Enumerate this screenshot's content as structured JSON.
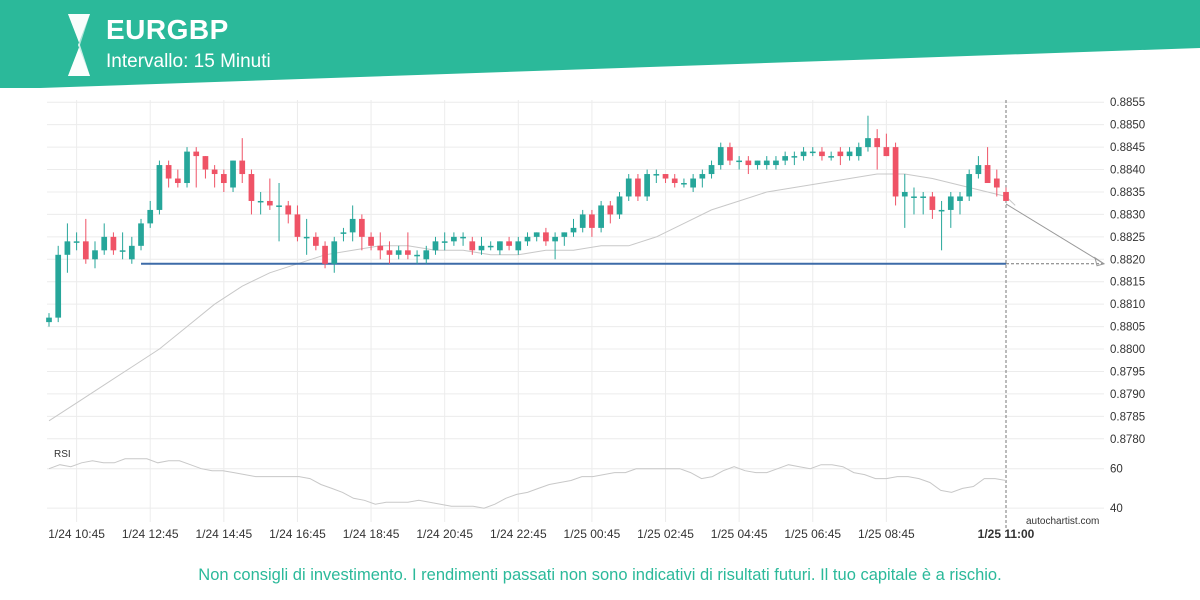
{
  "header": {
    "symbol": "EURGBP",
    "interval": "Intervallo: 15 Minuti",
    "brand_color": "#2bb99a",
    "logo_icon": "autochartist-logo-icon"
  },
  "footer": {
    "disclaimer": "Non consigli di investimento. I rendimenti passati non sono indicativi di risultati futuri. Il tuo capitale è a rischio."
  },
  "chart_data": [
    {
      "type": "candlestick",
      "title": "",
      "colors": {
        "up": "#26a69a",
        "down": "#ef5366",
        "moving_average": "#c8c8c8",
        "support_line": "#3d6ba8",
        "projection": "#999999"
      },
      "x_tick_labels": [
        "1/24 10:45",
        "1/24 12:45",
        "1/24 14:45",
        "1/24 16:45",
        "1/24 18:45",
        "1/24 20:45",
        "1/24 22:45",
        "1/25 00:45",
        "1/25 02:45",
        "1/25 04:45",
        "1/25 06:45",
        "1/25 08:45",
        "1/25 11:00"
      ],
      "y_ticks": [
        "0.8855",
        "0.8850",
        "0.8845",
        "0.8840",
        "0.8835",
        "0.8830",
        "0.8825",
        "0.8820",
        "0.8815",
        "0.8810",
        "0.8805",
        "0.8800",
        "0.8795",
        "0.8790",
        "0.8785",
        "0.8780"
      ],
      "ylim": [
        0.87775,
        0.88555
      ],
      "grid": true,
      "candles": [
        {
          "o": 0.8806,
          "h": 0.8808,
          "l": 0.8805,
          "c": 0.8807
        },
        {
          "o": 0.8807,
          "h": 0.8823,
          "l": 0.8806,
          "c": 0.8821
        },
        {
          "o": 0.8821,
          "h": 0.8828,
          "l": 0.8817,
          "c": 0.8824
        },
        {
          "o": 0.8824,
          "h": 0.8826,
          "l": 0.8822,
          "c": 0.8824
        },
        {
          "o": 0.8824,
          "h": 0.8829,
          "l": 0.8819,
          "c": 0.882
        },
        {
          "o": 0.882,
          "h": 0.8824,
          "l": 0.8818,
          "c": 0.8822
        },
        {
          "o": 0.8822,
          "h": 0.8828,
          "l": 0.8821,
          "c": 0.8825
        },
        {
          "o": 0.8825,
          "h": 0.8826,
          "l": 0.8821,
          "c": 0.8822
        },
        {
          "o": 0.8822,
          "h": 0.8826,
          "l": 0.882,
          "c": 0.8822
        },
        {
          "o": 0.882,
          "h": 0.8825,
          "l": 0.8819,
          "c": 0.8823
        },
        {
          "o": 0.8823,
          "h": 0.8829,
          "l": 0.8822,
          "c": 0.8828
        },
        {
          "o": 0.8828,
          "h": 0.8833,
          "l": 0.8827,
          "c": 0.8831
        },
        {
          "o": 0.8831,
          "h": 0.8842,
          "l": 0.883,
          "c": 0.8841
        },
        {
          "o": 0.8841,
          "h": 0.8842,
          "l": 0.8836,
          "c": 0.8838
        },
        {
          "o": 0.8838,
          "h": 0.884,
          "l": 0.8836,
          "c": 0.8837
        },
        {
          "o": 0.8837,
          "h": 0.8845,
          "l": 0.8836,
          "c": 0.8844
        },
        {
          "o": 0.8844,
          "h": 0.8845,
          "l": 0.8836,
          "c": 0.8843
        },
        {
          "o": 0.8843,
          "h": 0.8843,
          "l": 0.8838,
          "c": 0.884
        },
        {
          "o": 0.884,
          "h": 0.8841,
          "l": 0.8836,
          "c": 0.8839
        },
        {
          "o": 0.8839,
          "h": 0.884,
          "l": 0.8835,
          "c": 0.8837
        },
        {
          "o": 0.8836,
          "h": 0.8842,
          "l": 0.8835,
          "c": 0.8842
        },
        {
          "o": 0.8842,
          "h": 0.8847,
          "l": 0.8837,
          "c": 0.8839
        },
        {
          "o": 0.8839,
          "h": 0.884,
          "l": 0.883,
          "c": 0.8833
        },
        {
          "o": 0.8833,
          "h": 0.8835,
          "l": 0.883,
          "c": 0.8833
        },
        {
          "o": 0.8833,
          "h": 0.8838,
          "l": 0.8831,
          "c": 0.8832
        },
        {
          "o": 0.8832,
          "h": 0.8837,
          "l": 0.8824,
          "c": 0.8832
        },
        {
          "o": 0.8832,
          "h": 0.8833,
          "l": 0.8828,
          "c": 0.883
        },
        {
          "o": 0.883,
          "h": 0.8832,
          "l": 0.8824,
          "c": 0.8825
        },
        {
          "o": 0.8825,
          "h": 0.8829,
          "l": 0.8821,
          "c": 0.8825
        },
        {
          "o": 0.8825,
          "h": 0.8826,
          "l": 0.8822,
          "c": 0.8823
        },
        {
          "o": 0.8823,
          "h": 0.8824,
          "l": 0.8818,
          "c": 0.8819
        },
        {
          "o": 0.8819,
          "h": 0.8825,
          "l": 0.8817,
          "c": 0.8824
        },
        {
          "o": 0.8826,
          "h": 0.8827,
          "l": 0.8824,
          "c": 0.8826
        },
        {
          "o": 0.8826,
          "h": 0.8832,
          "l": 0.8824,
          "c": 0.8829
        },
        {
          "o": 0.8829,
          "h": 0.883,
          "l": 0.8822,
          "c": 0.8825
        },
        {
          "o": 0.8825,
          "h": 0.8826,
          "l": 0.8822,
          "c": 0.8823
        },
        {
          "o": 0.8823,
          "h": 0.8826,
          "l": 0.882,
          "c": 0.8822
        },
        {
          "o": 0.8822,
          "h": 0.8824,
          "l": 0.8819,
          "c": 0.8821
        },
        {
          "o": 0.8821,
          "h": 0.8823,
          "l": 0.882,
          "c": 0.8822
        },
        {
          "o": 0.8822,
          "h": 0.8826,
          "l": 0.882,
          "c": 0.8821
        },
        {
          "o": 0.8821,
          "h": 0.8822,
          "l": 0.8819,
          "c": 0.8821
        },
        {
          "o": 0.882,
          "h": 0.8823,
          "l": 0.8819,
          "c": 0.8822
        },
        {
          "o": 0.8822,
          "h": 0.8825,
          "l": 0.8821,
          "c": 0.8824
        },
        {
          "o": 0.8824,
          "h": 0.8826,
          "l": 0.8822,
          "c": 0.8824
        },
        {
          "o": 0.8824,
          "h": 0.8826,
          "l": 0.8823,
          "c": 0.8825
        },
        {
          "o": 0.8825,
          "h": 0.8826,
          "l": 0.8823,
          "c": 0.8825
        },
        {
          "o": 0.8824,
          "h": 0.8825,
          "l": 0.8821,
          "c": 0.8822
        },
        {
          "o": 0.8822,
          "h": 0.8825,
          "l": 0.8821,
          "c": 0.8823
        },
        {
          "o": 0.8823,
          "h": 0.8824,
          "l": 0.8822,
          "c": 0.8823
        },
        {
          "o": 0.8822,
          "h": 0.8824,
          "l": 0.8821,
          "c": 0.8824
        },
        {
          "o": 0.8824,
          "h": 0.8825,
          "l": 0.8822,
          "c": 0.8823
        },
        {
          "o": 0.8822,
          "h": 0.8825,
          "l": 0.8821,
          "c": 0.8824
        },
        {
          "o": 0.8824,
          "h": 0.8826,
          "l": 0.8823,
          "c": 0.8825
        },
        {
          "o": 0.8825,
          "h": 0.8826,
          "l": 0.8824,
          "c": 0.8826
        },
        {
          "o": 0.8826,
          "h": 0.8827,
          "l": 0.8823,
          "c": 0.8824
        },
        {
          "o": 0.8824,
          "h": 0.8826,
          "l": 0.882,
          "c": 0.8825
        },
        {
          "o": 0.8825,
          "h": 0.8826,
          "l": 0.8823,
          "c": 0.8826
        },
        {
          "o": 0.8826,
          "h": 0.8829,
          "l": 0.8825,
          "c": 0.8827
        },
        {
          "o": 0.8827,
          "h": 0.8831,
          "l": 0.8826,
          "c": 0.883
        },
        {
          "o": 0.883,
          "h": 0.8831,
          "l": 0.8825,
          "c": 0.8827
        },
        {
          "o": 0.8827,
          "h": 0.8833,
          "l": 0.8826,
          "c": 0.8832
        },
        {
          "o": 0.8832,
          "h": 0.8833,
          "l": 0.8828,
          "c": 0.883
        },
        {
          "o": 0.883,
          "h": 0.8835,
          "l": 0.8829,
          "c": 0.8834
        },
        {
          "o": 0.8834,
          "h": 0.8839,
          "l": 0.8833,
          "c": 0.8838
        },
        {
          "o": 0.8838,
          "h": 0.8839,
          "l": 0.8833,
          "c": 0.8834
        },
        {
          "o": 0.8834,
          "h": 0.884,
          "l": 0.8833,
          "c": 0.8839
        },
        {
          "o": 0.8839,
          "h": 0.884,
          "l": 0.8837,
          "c": 0.8839
        },
        {
          "o": 0.8839,
          "h": 0.8839,
          "l": 0.8837,
          "c": 0.8838
        },
        {
          "o": 0.8838,
          "h": 0.8839,
          "l": 0.8836,
          "c": 0.8837
        },
        {
          "o": 0.8837,
          "h": 0.8838,
          "l": 0.8836,
          "c": 0.8837
        },
        {
          "o": 0.8836,
          "h": 0.8839,
          "l": 0.8835,
          "c": 0.8838
        },
        {
          "o": 0.8838,
          "h": 0.884,
          "l": 0.8836,
          "c": 0.8839
        },
        {
          "o": 0.8839,
          "h": 0.8842,
          "l": 0.8838,
          "c": 0.8841
        },
        {
          "o": 0.8841,
          "h": 0.8846,
          "l": 0.884,
          "c": 0.8845
        },
        {
          "o": 0.8845,
          "h": 0.8846,
          "l": 0.8841,
          "c": 0.8842
        },
        {
          "o": 0.8842,
          "h": 0.8843,
          "l": 0.884,
          "c": 0.8842
        },
        {
          "o": 0.8842,
          "h": 0.8843,
          "l": 0.8839,
          "c": 0.8841
        },
        {
          "o": 0.8841,
          "h": 0.8842,
          "l": 0.884,
          "c": 0.8842
        },
        {
          "o": 0.8841,
          "h": 0.8843,
          "l": 0.884,
          "c": 0.8842
        },
        {
          "o": 0.8841,
          "h": 0.8843,
          "l": 0.884,
          "c": 0.8842
        },
        {
          "o": 0.8842,
          "h": 0.8844,
          "l": 0.8841,
          "c": 0.8843
        },
        {
          "o": 0.8843,
          "h": 0.8844,
          "l": 0.8841,
          "c": 0.8843
        },
        {
          "o": 0.8843,
          "h": 0.8845,
          "l": 0.8842,
          "c": 0.8844
        },
        {
          "o": 0.8844,
          "h": 0.8845,
          "l": 0.8843,
          "c": 0.8844
        },
        {
          "o": 0.8844,
          "h": 0.8845,
          "l": 0.8842,
          "c": 0.8843
        },
        {
          "o": 0.8843,
          "h": 0.8844,
          "l": 0.8842,
          "c": 0.8843
        },
        {
          "o": 0.8844,
          "h": 0.8845,
          "l": 0.8841,
          "c": 0.8843
        },
        {
          "o": 0.8843,
          "h": 0.8845,
          "l": 0.8842,
          "c": 0.8844
        },
        {
          "o": 0.8843,
          "h": 0.8846,
          "l": 0.8842,
          "c": 0.8845
        },
        {
          "o": 0.8845,
          "h": 0.8852,
          "l": 0.8844,
          "c": 0.8847
        },
        {
          "o": 0.8847,
          "h": 0.8849,
          "l": 0.884,
          "c": 0.8845
        },
        {
          "o": 0.8845,
          "h": 0.8848,
          "l": 0.8843,
          "c": 0.8843
        },
        {
          "o": 0.8845,
          "h": 0.8846,
          "l": 0.8832,
          "c": 0.8834
        },
        {
          "o": 0.8834,
          "h": 0.8839,
          "l": 0.8827,
          "c": 0.8835
        },
        {
          "o": 0.8834,
          "h": 0.8836,
          "l": 0.883,
          "c": 0.8834
        },
        {
          "o": 0.8834,
          "h": 0.8835,
          "l": 0.883,
          "c": 0.8834
        },
        {
          "o": 0.8834,
          "h": 0.8835,
          "l": 0.8829,
          "c": 0.8831
        },
        {
          "o": 0.8831,
          "h": 0.8833,
          "l": 0.8822,
          "c": 0.8831
        },
        {
          "o": 0.8831,
          "h": 0.8835,
          "l": 0.8827,
          "c": 0.8834
        },
        {
          "o": 0.8833,
          "h": 0.8835,
          "l": 0.883,
          "c": 0.8834
        },
        {
          "o": 0.8834,
          "h": 0.884,
          "l": 0.8833,
          "c": 0.8839
        },
        {
          "o": 0.8839,
          "h": 0.8843,
          "l": 0.8838,
          "c": 0.8841
        },
        {
          "o": 0.8841,
          "h": 0.8845,
          "l": 0.8837,
          "c": 0.8837
        },
        {
          "o": 0.8838,
          "h": 0.884,
          "l": 0.8834,
          "c": 0.8836
        },
        {
          "o": 0.8835,
          "h": 0.8836,
          "l": 0.8833,
          "c": 0.8833
        }
      ],
      "moving_average": [
        0.8784,
        0.8788,
        0.8792,
        0.8796,
        0.88,
        0.8805,
        0.881,
        0.8814,
        0.8817,
        0.8819,
        0.8821,
        0.8822,
        0.8823,
        0.8823,
        0.8822,
        0.8822,
        0.8821,
        0.8821,
        0.8822,
        0.8822,
        0.8823,
        0.8823,
        0.8825,
        0.8828,
        0.8831,
        0.8833,
        0.8835,
        0.8836,
        0.8837,
        0.8838,
        0.8839,
        0.8839,
        0.8838,
        0.8837,
        0.8836,
        0.8835,
        0.8834,
        0.8832
      ],
      "moving_average_x": [
        0,
        3,
        6,
        9,
        12,
        15,
        18,
        21,
        24,
        27,
        30,
        33,
        36,
        39,
        42,
        45,
        48,
        51,
        54,
        57,
        60,
        63,
        66,
        69,
        72,
        75,
        78,
        81,
        84,
        87,
        90,
        93,
        96,
        98,
        100,
        102,
        104,
        105
      ],
      "support_level": 0.8819,
      "support_from_candle": 10,
      "projection_target": 0.8819,
      "current_label": "1/25 11:00",
      "watermark": "autochartist.com"
    },
    {
      "type": "line",
      "title": "RSI",
      "y_ticks": [
        "60",
        "40"
      ],
      "ylim": [
        33,
        72
      ],
      "values": [
        60,
        62,
        61,
        63,
        64,
        63,
        63,
        65,
        65,
        65,
        63,
        64,
        64,
        62,
        60,
        59,
        59,
        58,
        57,
        56,
        56,
        56,
        56,
        56,
        55,
        52,
        50,
        48,
        45,
        44,
        42,
        43,
        43,
        43,
        44,
        43,
        42,
        41,
        41,
        41,
        40,
        42,
        45,
        47,
        48,
        50,
        52,
        53,
        54,
        56,
        56,
        57,
        58,
        58,
        60,
        60,
        60,
        60,
        60,
        58,
        55,
        56,
        59,
        61,
        59,
        58,
        58,
        60,
        62,
        61,
        60,
        62,
        62,
        61,
        58,
        57,
        55,
        55,
        56,
        56,
        55,
        53,
        49,
        48,
        50,
        51,
        55,
        55,
        54
      ]
    }
  ]
}
